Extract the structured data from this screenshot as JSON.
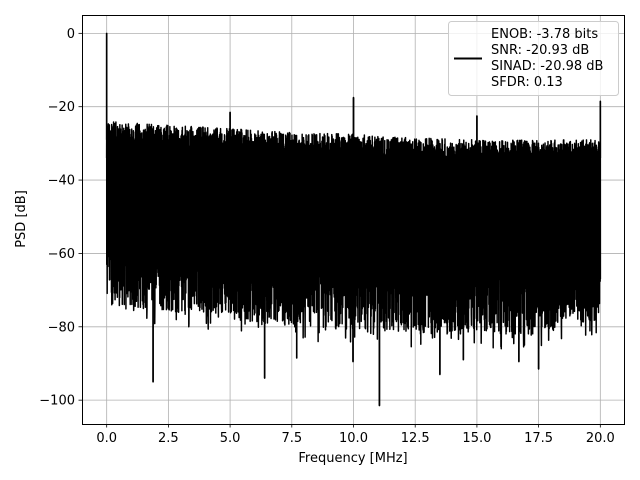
{
  "chart_data": {
    "type": "line",
    "xlabel": "Frequency [MHz]",
    "ylabel": "PSD [dB]",
    "xlim": [
      -1.0,
      21.0
    ],
    "ylim": [
      -106.5,
      5.0
    ],
    "xticks": [
      0.0,
      2.5,
      5.0,
      7.5,
      10.0,
      12.5,
      15.0,
      17.5,
      20.0
    ],
    "xtick_labels": [
      "0.0",
      "2.5",
      "5.0",
      "7.5",
      "10.0",
      "12.5",
      "15.0",
      "17.5",
      "20.0"
    ],
    "yticks": [
      0,
      -20,
      -40,
      -60,
      -80,
      -100
    ],
    "ytick_labels": [
      "0",
      "−20",
      "−40",
      "−60",
      "−80",
      "−100"
    ],
    "grid": true,
    "legend_position": "top-right",
    "legend_lines": [
      "ENOB: -3.78 bits",
      "SNR: -20.93 dB",
      "SINAD: -20.98 dB",
      "SFDR: 0.13"
    ],
    "series_color": "#000000",
    "noise_floor": {
      "x_range": [
        0.0,
        20.0
      ],
      "upper_envelope": [
        [
          0.1,
          -24
        ],
        [
          2.5,
          -25
        ],
        [
          5.0,
          -26
        ],
        [
          7.5,
          -27
        ],
        [
          10.0,
          -27.5
        ],
        [
          12.5,
          -28.5
        ],
        [
          15.0,
          -29
        ],
        [
          17.5,
          -29
        ],
        [
          20.0,
          -29
        ]
      ],
      "lower_envelope": [
        [
          0.1,
          -68
        ],
        [
          2.5,
          -70
        ],
        [
          5.0,
          -72
        ],
        [
          7.5,
          -74
        ],
        [
          10.0,
          -75
        ],
        [
          12.5,
          -76
        ],
        [
          15.0,
          -76
        ],
        [
          17.5,
          -76
        ],
        [
          20.0,
          -72
        ]
      ]
    },
    "peaks": [
      {
        "x": 0.0,
        "y": 0
      },
      {
        "x": 5.0,
        "y": -21.5
      },
      {
        "x": 10.0,
        "y": -17.5
      },
      {
        "x": 15.0,
        "y": -22.5
      },
      {
        "x": 20.0,
        "y": -18.5
      }
    ],
    "dips": [
      {
        "x": 1.88,
        "y": -95
      },
      {
        "x": 11.05,
        "y": -101.5
      },
      {
        "x": 6.4,
        "y": -94
      },
      {
        "x": 13.5,
        "y": -93
      },
      {
        "x": 9.98,
        "y": -89.5
      },
      {
        "x": 7.7,
        "y": -88.5
      },
      {
        "x": 14.45,
        "y": -89
      },
      {
        "x": 17.5,
        "y": -91.5
      },
      {
        "x": 16.7,
        "y": -89.5
      }
    ]
  }
}
